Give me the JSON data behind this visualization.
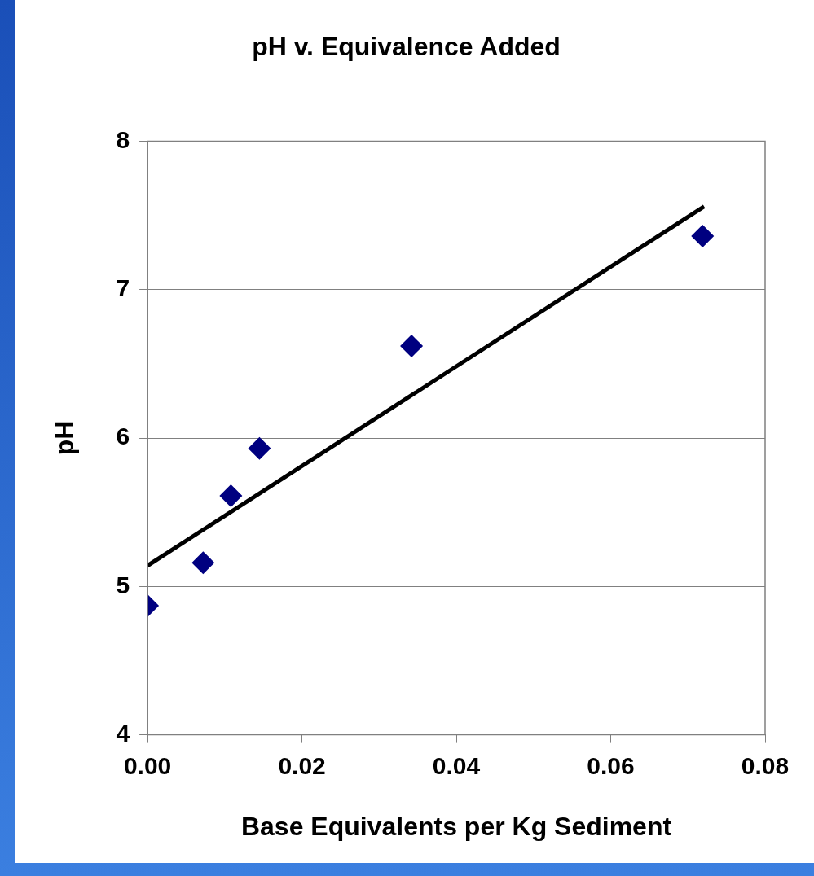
{
  "chart_data": {
    "type": "scatter",
    "title": "pH v. Equivalence Added",
    "xlabel": "Base Equivalents per Kg Sediment",
    "ylabel": "pH",
    "xlim": [
      0,
      0.08
    ],
    "xticks": [
      {
        "value": 0,
        "label": "0.00"
      },
      {
        "value": 0.02,
        "label": "0.02"
      },
      {
        "value": 0.04,
        "label": "0.04"
      },
      {
        "value": 0.06,
        "label": "0.06"
      },
      {
        "value": 0.08,
        "label": "0.08"
      }
    ],
    "ylim": [
      4,
      8
    ],
    "yticks": [
      4,
      5,
      6,
      7,
      8
    ],
    "grid": "y",
    "legend": false,
    "marker": "diamond",
    "series": [
      {
        "color": "#000080",
        "x": [
          0,
          0.0072,
          0.0108,
          0.0145,
          0.0342,
          0.0719
        ],
        "values": [
          4.87,
          5.16,
          5.61,
          5.93,
          6.62,
          7.36
        ]
      },
      {
        "type": "line",
        "color": "#000000",
        "marker": "none",
        "x": [
          0,
          0.0721
        ],
        "values": [
          5.14,
          7.56
        ]
      }
    ]
  }
}
